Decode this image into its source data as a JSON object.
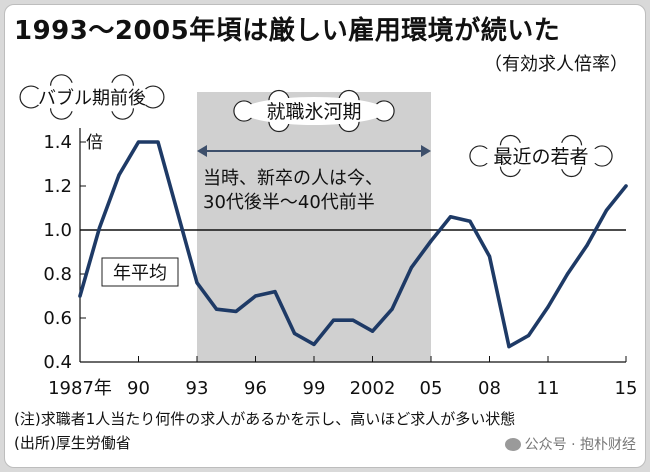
{
  "title": "1993～2005年頃は厳しい雇用環境が続いた",
  "subtitle": "（有効求人倍率）",
  "notes": {
    "note": "(注)求職者1人当たり何件の求人があるかを示し、高いほど求人が多い状態",
    "source": "(出所)厚生労働省"
  },
  "watermark": "公众号 · 抱朴财经",
  "colors": {
    "line": "#1e3a66",
    "shade": "#d0d0d0",
    "arrow": "#3d4f6b"
  },
  "chart_data": {
    "type": "line",
    "title": "1993～2005年頃は厳しい雇用環境が続いた",
    "subtitle": "（有効求人倍率）",
    "ylabel": "倍",
    "xlim": [
      1987,
      2015
    ],
    "ylim": [
      0.4,
      1.4
    ],
    "y_ticks": [
      0.4,
      0.6,
      0.8,
      1.0,
      1.2,
      1.4
    ],
    "y_tick_labels": [
      "0.4",
      "0.6",
      "0.8",
      "1.0",
      "1.2",
      "1.4"
    ],
    "x_ticks": [
      1987,
      1990,
      1993,
      1996,
      1999,
      2002,
      2005,
      2008,
      2011,
      2015
    ],
    "x_tick_labels": [
      "1987年",
      "90",
      "93",
      "96",
      "99",
      "2002",
      "05",
      "08",
      "11",
      "15"
    ],
    "grid": false,
    "reference_line": {
      "y": 1.0,
      "label": "年平均"
    },
    "shaded_period": {
      "from": 1993,
      "to": 2005,
      "label": "就職氷河期"
    },
    "annotations": {
      "bubble_left": "バブル期前後",
      "bubble_right": "最近の若者",
      "period_note_line1": "当時、新卒の人は今、",
      "period_note_line2": "30代後半～40代前半"
    },
    "series": [
      {
        "x": [
          1987,
          1988,
          1989,
          1990,
          1991,
          1992,
          1993,
          1994,
          1995,
          1996,
          1997,
          1998,
          1999,
          2000,
          2001,
          2002,
          2003,
          2004,
          2005,
          2006,
          2007,
          2008,
          2009,
          2010,
          2011,
          2012,
          2013,
          2014,
          2015
        ],
        "values": [
          0.7,
          1.01,
          1.25,
          1.4,
          1.4,
          1.08,
          0.76,
          0.64,
          0.63,
          0.7,
          0.72,
          0.53,
          0.48,
          0.59,
          0.59,
          0.54,
          0.64,
          0.83,
          0.95,
          1.06,
          1.04,
          0.88,
          0.47,
          0.52,
          0.65,
          0.8,
          0.93,
          1.09,
          1.2
        ]
      }
    ]
  }
}
